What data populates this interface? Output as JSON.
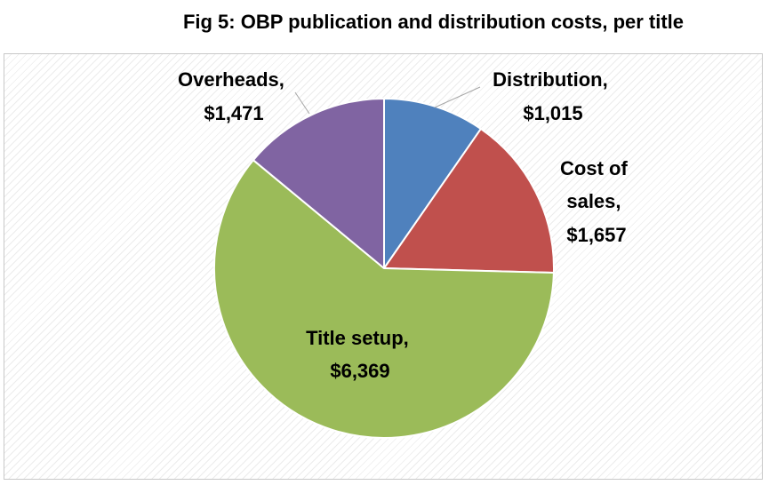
{
  "chart_data": {
    "type": "pie",
    "title": "Fig 5:  OBP publication and distribution costs, per title",
    "start_angle_deg": 0,
    "direction": "clockwise",
    "slices": [
      {
        "name": "Distribution",
        "label": "Distribution,",
        "value_label": "$1,015",
        "value": 1015,
        "color": "#4f81bd"
      },
      {
        "name": "Cost of sales",
        "label": "Cost of sales,",
        "value_label": "$1,657",
        "value": 1657,
        "color": "#c0504d"
      },
      {
        "name": "Title setup",
        "label": "Title setup,",
        "value_label": "$6,369",
        "value": 6369,
        "color": "#9bbb59"
      },
      {
        "name": "Overheads",
        "label": "Overheads,",
        "value_label": "$1,471",
        "value": 1471,
        "color": "#8064a2"
      }
    ],
    "legend": "none",
    "background": "diagonal hatch"
  }
}
